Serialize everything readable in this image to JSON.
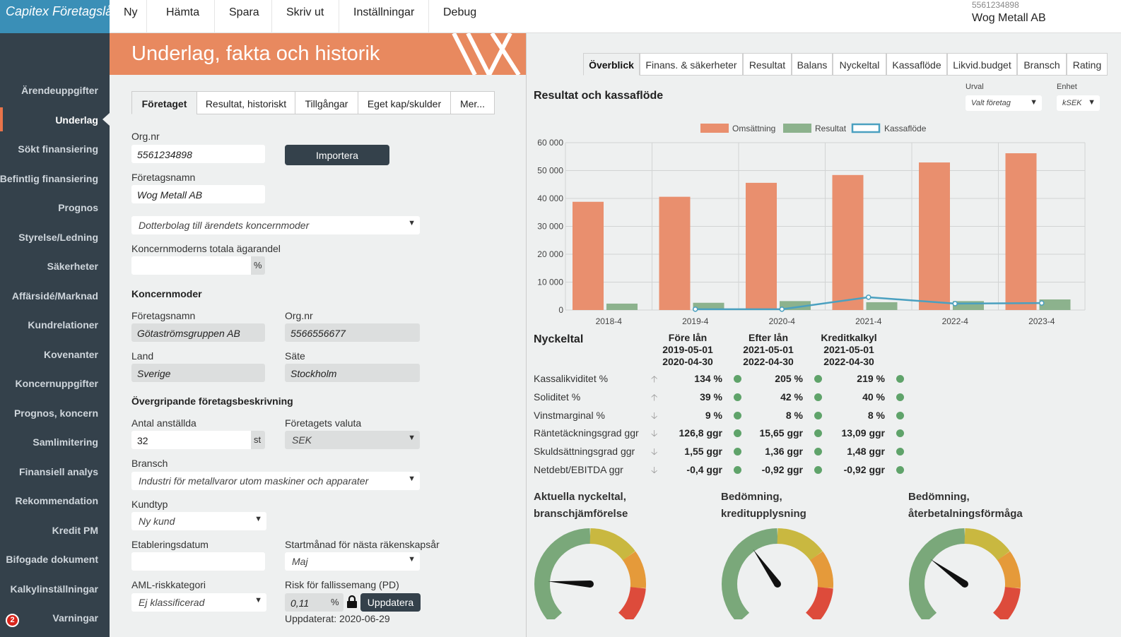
{
  "app": {
    "brand": "Capitex Företagslån"
  },
  "topmenu": [
    "Ny",
    "Hämta",
    "Spara",
    "Skriv ut",
    "Inställningar",
    "Debug"
  ],
  "company": {
    "org_nr": "5561234898",
    "name": "Wog Metall AB"
  },
  "sidebar": {
    "items": [
      "Ärendeuppgifter",
      "Underlag",
      "Sökt finansiering",
      "Befintlig finansiering",
      "Prognos",
      "Styrelse/Ledning",
      "Säkerheter",
      "Affärsidé/Marknad",
      "Kundrelationer",
      "Kovenanter",
      "Koncernuppgifter",
      "Prognos, koncern",
      "Samlimitering",
      "Finansiell analys",
      "Rekommendation",
      "Kredit PM",
      "Bifogade dokument",
      "Kalkylinställningar",
      "Varningar"
    ],
    "active_index": 1,
    "warning_count": "2"
  },
  "left": {
    "title": "Underlag, fakta och historik",
    "tabs": [
      "Företaget",
      "Resultat, historiskt",
      "Tillgångar",
      "Eget kap/skulder",
      "Mer..."
    ],
    "org_label": "Org.nr",
    "org_value": "5561234898",
    "import_btn": "Importera",
    "name_label": "Företagsnamn",
    "name_value": "Wog Metall AB",
    "relation_select": "Dotterbolag till ärendets koncernmoder",
    "share_label": "Koncernmoderns totala ägarandel",
    "share_unit": "%",
    "parent_heading": "Koncernmoder",
    "parent_name_label": "Företagsnamn",
    "parent_name_value": "Götaströmsgruppen AB",
    "parent_org_label": "Org.nr",
    "parent_org_value": "5566556677",
    "country_label": "Land",
    "country_value": "Sverige",
    "seat_label": "Säte",
    "seat_value": "Stockholm",
    "desc_heading": "Övergripande företagsbeskrivning",
    "employees_label": "Antal anställda",
    "employees_value": "32",
    "employees_unit": "st",
    "currency_label": "Företagets valuta",
    "currency_value": "SEK",
    "industry_label": "Bransch",
    "industry_value": "Industri för metallvaror utom maskiner och apparater",
    "customer_type_label": "Kundtyp",
    "customer_type_value": "Ny kund",
    "est_date_label": "Etableringsdatum",
    "start_month_label": "Startmånad för nästa räkenskapsår",
    "start_month_value": "Maj",
    "aml_label": "AML-riskkategori",
    "aml_value": "Ej klassificerad",
    "pd_label": "Risk för fallissemang (PD)",
    "pd_value": "0,11",
    "pd_unit": "%",
    "update_btn": "Uppdatera",
    "updated_text": "Uppdaterat: 2020-06-29"
  },
  "right": {
    "tabs": [
      "Överblick",
      "Finans. & säkerheter",
      "Resultat",
      "Balans",
      "Nyckeltal",
      "Kassaflöde",
      "Likvid.budget",
      "Bransch",
      "Rating"
    ],
    "chart_title": "Resultat och kassaflöde",
    "urval_label": "Urval",
    "urval_value": "Valt företag",
    "enhet_label": "Enhet",
    "enhet_value": "kSEK",
    "nyckeltal": {
      "title": "Nyckeltal",
      "columns": [
        {
          "h1": "Före lån",
          "h2": "2019-05-01",
          "h3": "2020-04-30"
        },
        {
          "h1": "Efter lån",
          "h2": "2021-05-01",
          "h3": "2022-04-30"
        },
        {
          "h1": "Kreditkalkyl",
          "h2": "2021-05-01",
          "h3": "2022-04-30"
        }
      ],
      "rows": [
        {
          "name": "Kassalikviditet %",
          "dir": "up",
          "values": [
            "134 %",
            "205 %",
            "219 %"
          ]
        },
        {
          "name": "Soliditet %",
          "dir": "up",
          "values": [
            "39 %",
            "42 %",
            "40 %"
          ]
        },
        {
          "name": "Vinstmarginal %",
          "dir": "down",
          "values": [
            "9 %",
            "8 %",
            "8 %"
          ]
        },
        {
          "name": "Räntetäckningsgrad ggr",
          "dir": "down",
          "values": [
            "126,8 ggr",
            "15,65 ggr",
            "13,09 ggr"
          ]
        },
        {
          "name": "Skuldsättningsgrad ggr",
          "dir": "down",
          "values": [
            "1,55 ggr",
            "1,36 ggr",
            "1,48 ggr"
          ]
        },
        {
          "name": "Netdebt/EBITDA ggr",
          "dir": "down",
          "values": [
            "-0,4 ggr",
            "-0,92 ggr",
            "-0,92 ggr"
          ]
        }
      ],
      "status_color": "#5fa36a"
    },
    "gauges": [
      {
        "line1": "Aktuella nyckeltal,",
        "line2": "branschjämförelse",
        "value": 0.18
      },
      {
        "line1": "Bedömning,",
        "line2": "kreditupplysning",
        "value": 0.37
      },
      {
        "line1": "Bedömning,",
        "line2": "återbetalningsförmåga",
        "value": 0.3
      }
    ]
  },
  "chart_data": {
    "type": "bar",
    "categories": [
      "2018-4",
      "2019-4",
      "2020-4",
      "2021-4",
      "2022-4",
      "2023-4"
    ],
    "series": [
      {
        "name": "Omsättning",
        "kind": "bar",
        "color": "#e98f6e",
        "values": [
          38800,
          40600,
          45600,
          48400,
          52900,
          56200
        ]
      },
      {
        "name": "Resultat",
        "kind": "bar",
        "color": "#8cb28d",
        "values": [
          2300,
          2600,
          3200,
          2800,
          3200,
          3800
        ]
      },
      {
        "name": "Kassaflöde",
        "kind": "line",
        "color": "#4aa0c0",
        "values": [
          null,
          300,
          300,
          4600,
          2300,
          2500
        ]
      }
    ],
    "ylim": [
      0,
      60000
    ],
    "yticks": [
      "60 000",
      "50 000",
      "40 000",
      "30 000",
      "20 000",
      "10 000",
      "0"
    ],
    "legend": "top"
  },
  "colors": {
    "accent": "#e8895f",
    "sidebar": "#34414b",
    "brand": "#3a8fb7"
  }
}
